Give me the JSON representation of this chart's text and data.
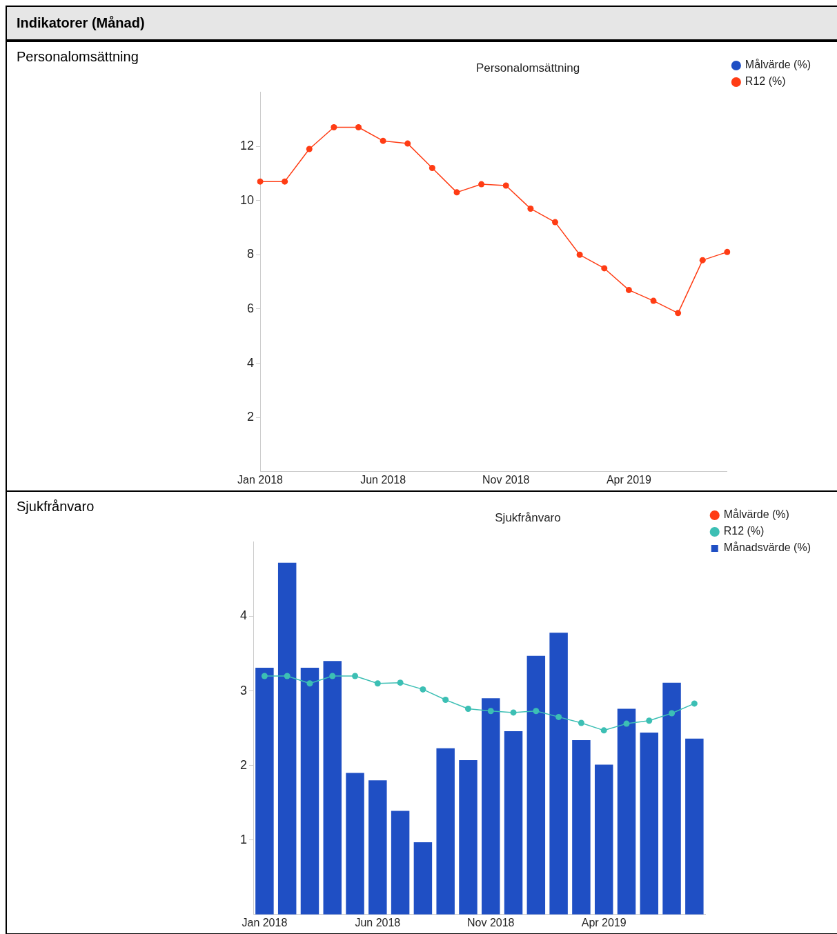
{
  "chart_data": [
    {
      "type": "line",
      "title": "Personalomsättning",
      "annotations": [
        "Indikatorer (Månad)",
        "Personalomsättning"
      ],
      "categories": [
        "Jan 2018",
        null,
        null,
        null,
        null,
        "Jun 2018",
        null,
        null,
        null,
        null,
        "Nov 2018",
        null,
        null,
        null,
        null,
        "Apr 2019",
        null,
        null,
        null,
        null
      ],
      "series": [
        {
          "name": "Målvärde (%)",
          "color": "#1f4fc4",
          "values": [
            null,
            null,
            null,
            null,
            null,
            null,
            null,
            null,
            null,
            null,
            null,
            null,
            null,
            null,
            null,
            null,
            null,
            null,
            null,
            null
          ]
        },
        {
          "name": "R12 (%)",
          "color": "#ff3c14",
          "values": [
            10.7,
            10.7,
            11.9,
            12.7,
            12.7,
            12.2,
            12.1,
            11.2,
            10.3,
            10.6,
            10.55,
            9.7,
            9.2,
            8.0,
            7.5,
            6.7,
            6.3,
            5.85,
            7.8,
            8.1
          ]
        }
      ],
      "ylim": [
        0,
        14
      ],
      "yticks": [
        2,
        4,
        6,
        8,
        10,
        12
      ],
      "grid": false,
      "legend": "top right",
      "marker": "circle"
    },
    {
      "type": "bar",
      "title": "Sjukfrånvaro",
      "annotations": [
        "Sjukfrånvaro"
      ],
      "categories": [
        "Jan 2018",
        null,
        null,
        null,
        null,
        "Jun 2018",
        null,
        null,
        null,
        null,
        "Nov 2018",
        null,
        null,
        null,
        null,
        "Apr 2019",
        null,
        null,
        null,
        null
      ],
      "series": [
        {
          "name": "Månadsvärde (%)",
          "color": "#1f4fc4",
          "values": [
            3.31,
            4.72,
            3.31,
            3.4,
            1.9,
            1.8,
            1.39,
            0.97,
            2.23,
            2.07,
            2.9,
            2.46,
            3.47,
            3.78,
            2.34,
            2.01,
            2.76,
            2.44,
            3.11,
            2.36
          ]
        },
        {
          "name": "Målvärde (%)",
          "type": "line",
          "color": "#ff3c14",
          "values": [
            null,
            null,
            null,
            null,
            null,
            null,
            null,
            null,
            null,
            null,
            null,
            null,
            null,
            null,
            null,
            null,
            null,
            null,
            null,
            null
          ]
        },
        {
          "name": "R12 (%)",
          "type": "line",
          "color": "#3cbfb4",
          "values": [
            3.2,
            3.2,
            3.1,
            3.2,
            3.2,
            3.1,
            3.11,
            3.02,
            2.88,
            2.76,
            2.73,
            2.71,
            2.73,
            2.65,
            2.57,
            2.47,
            2.56,
            2.6,
            2.7,
            2.83
          ]
        }
      ],
      "ylim": [
        0,
        5
      ],
      "yticks": [
        1,
        2,
        3,
        4
      ],
      "grid": false,
      "legend": "top right",
      "marker": "circle"
    }
  ]
}
